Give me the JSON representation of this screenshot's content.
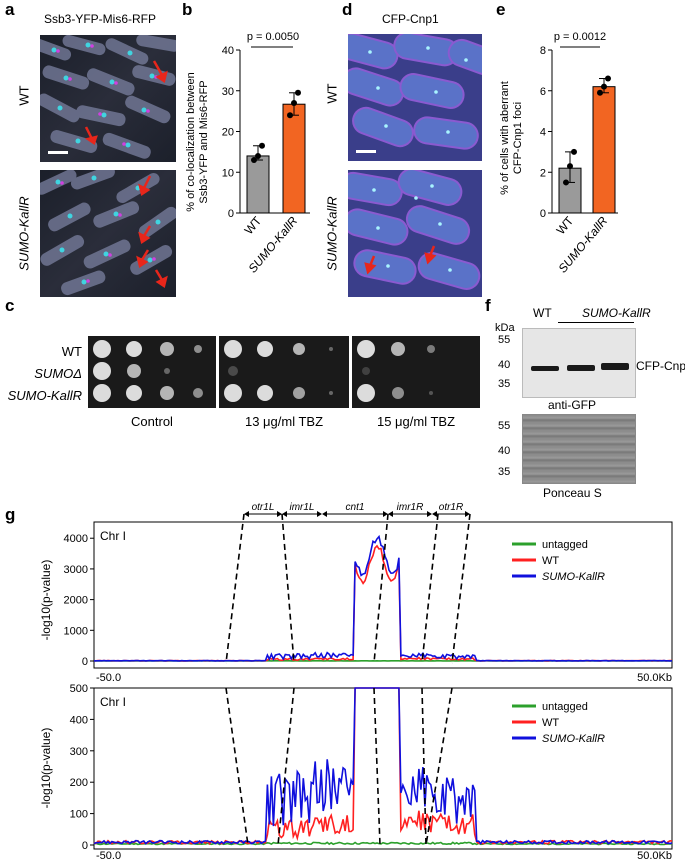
{
  "panels": {
    "a": {
      "label": "a",
      "title": "Ssb3-YFP-Mis6-RFP",
      "rows": [
        "WT",
        "SUMO-KallR"
      ]
    },
    "b": {
      "label": "b",
      "ylabel_line1": "% of co-localization between",
      "ylabel_line2": "Ssb3-YFP and Mis6-RFP",
      "pvalue": "p = 0.0050"
    },
    "c": {
      "label": "c",
      "rows": [
        "WT",
        "SUMOΔ",
        "SUMO-KallR"
      ],
      "conditions": [
        "Control",
        "13 μg/ml TBZ",
        "15 μg/ml TBZ"
      ]
    },
    "d": {
      "label": "d",
      "title": "CFP-Cnp1",
      "rows": [
        "WT",
        "SUMO-KallR"
      ]
    },
    "e": {
      "label": "e",
      "ylabel_line1": "% of cells with aberrant",
      "ylabel_line2": "CFP-Cnp1 foci",
      "pvalue": "p = 0.0012"
    },
    "f": {
      "label": "f",
      "kda": "kDa",
      "lanes": [
        "WT",
        "SUMO-KallR"
      ],
      "markers": [
        "55",
        "40",
        "35"
      ],
      "markers_top": [
        "55",
        "40",
        "35"
      ],
      "band_label": "CFP-Cnp1",
      "blot_label": "anti-GFP",
      "stain_label": "Ponceau S"
    },
    "g": {
      "label": "g",
      "regions": [
        "otr1L",
        "imr1L",
        "cnt1",
        "imr1R",
        "otr1R"
      ],
      "chrom": "Chr I",
      "ylabel": "-log10(p-value)",
      "x_start": "-50.0",
      "x_end": "50.0Kb",
      "legend": [
        "untagged",
        "WT",
        "SUMO-KallR"
      ],
      "top_ticks": [
        "0",
        "1000",
        "2000",
        "3000",
        "4000"
      ],
      "bottom_ticks": [
        "0",
        "100",
        "200",
        "300",
        "400",
        "500"
      ]
    }
  },
  "chart_data": [
    {
      "type": "bar",
      "panel": "b",
      "categories": [
        "WT",
        "SUMO-KallR"
      ],
      "values": [
        14,
        26.7
      ],
      "points": [
        [
          13,
          14,
          16.5
        ],
        [
          24,
          27,
          29.5
        ]
      ],
      "ylim": [
        0,
        40
      ],
      "yticks": [
        "0",
        "10",
        "20",
        "30",
        "40"
      ],
      "colors": [
        "#9a9a9a",
        "#f26522"
      ]
    },
    {
      "type": "bar",
      "panel": "e",
      "categories": [
        "WT",
        "SUMO-KallR"
      ],
      "values": [
        2.2,
        6.2
      ],
      "points": [
        [
          1.5,
          2.3,
          3.0
        ],
        [
          5.9,
          6.2,
          6.6
        ]
      ],
      "ylim": [
        0,
        8
      ],
      "yticks": [
        "0",
        "2",
        "4",
        "6",
        "8"
      ],
      "colors": [
        "#9a9a9a",
        "#f26522"
      ]
    },
    {
      "type": "line",
      "panel": "g-top",
      "xlim": [
        -50,
        50
      ],
      "ylim": [
        0,
        4500
      ],
      "series": [
        {
          "name": "untagged",
          "color": "#2ca02c"
        },
        {
          "name": "WT",
          "color": "#ff2020"
        },
        {
          "name": "SUMO-KallR",
          "color": "#1010dd"
        }
      ]
    },
    {
      "type": "line",
      "panel": "g-bottom",
      "xlim": [
        -50,
        50
      ],
      "ylim": [
        0,
        500
      ],
      "series": [
        {
          "name": "untagged",
          "color": "#2ca02c"
        },
        {
          "name": "WT",
          "color": "#ff2020"
        },
        {
          "name": "SUMO-KallR",
          "color": "#1010dd"
        }
      ]
    }
  ],
  "colors": {
    "bar_gray": "#9a9a9a",
    "bar_orange": "#f26522",
    "arrow_red": "#e8261b",
    "line_green": "#2ca02c",
    "line_red": "#ff2020",
    "line_blue": "#1010dd"
  }
}
